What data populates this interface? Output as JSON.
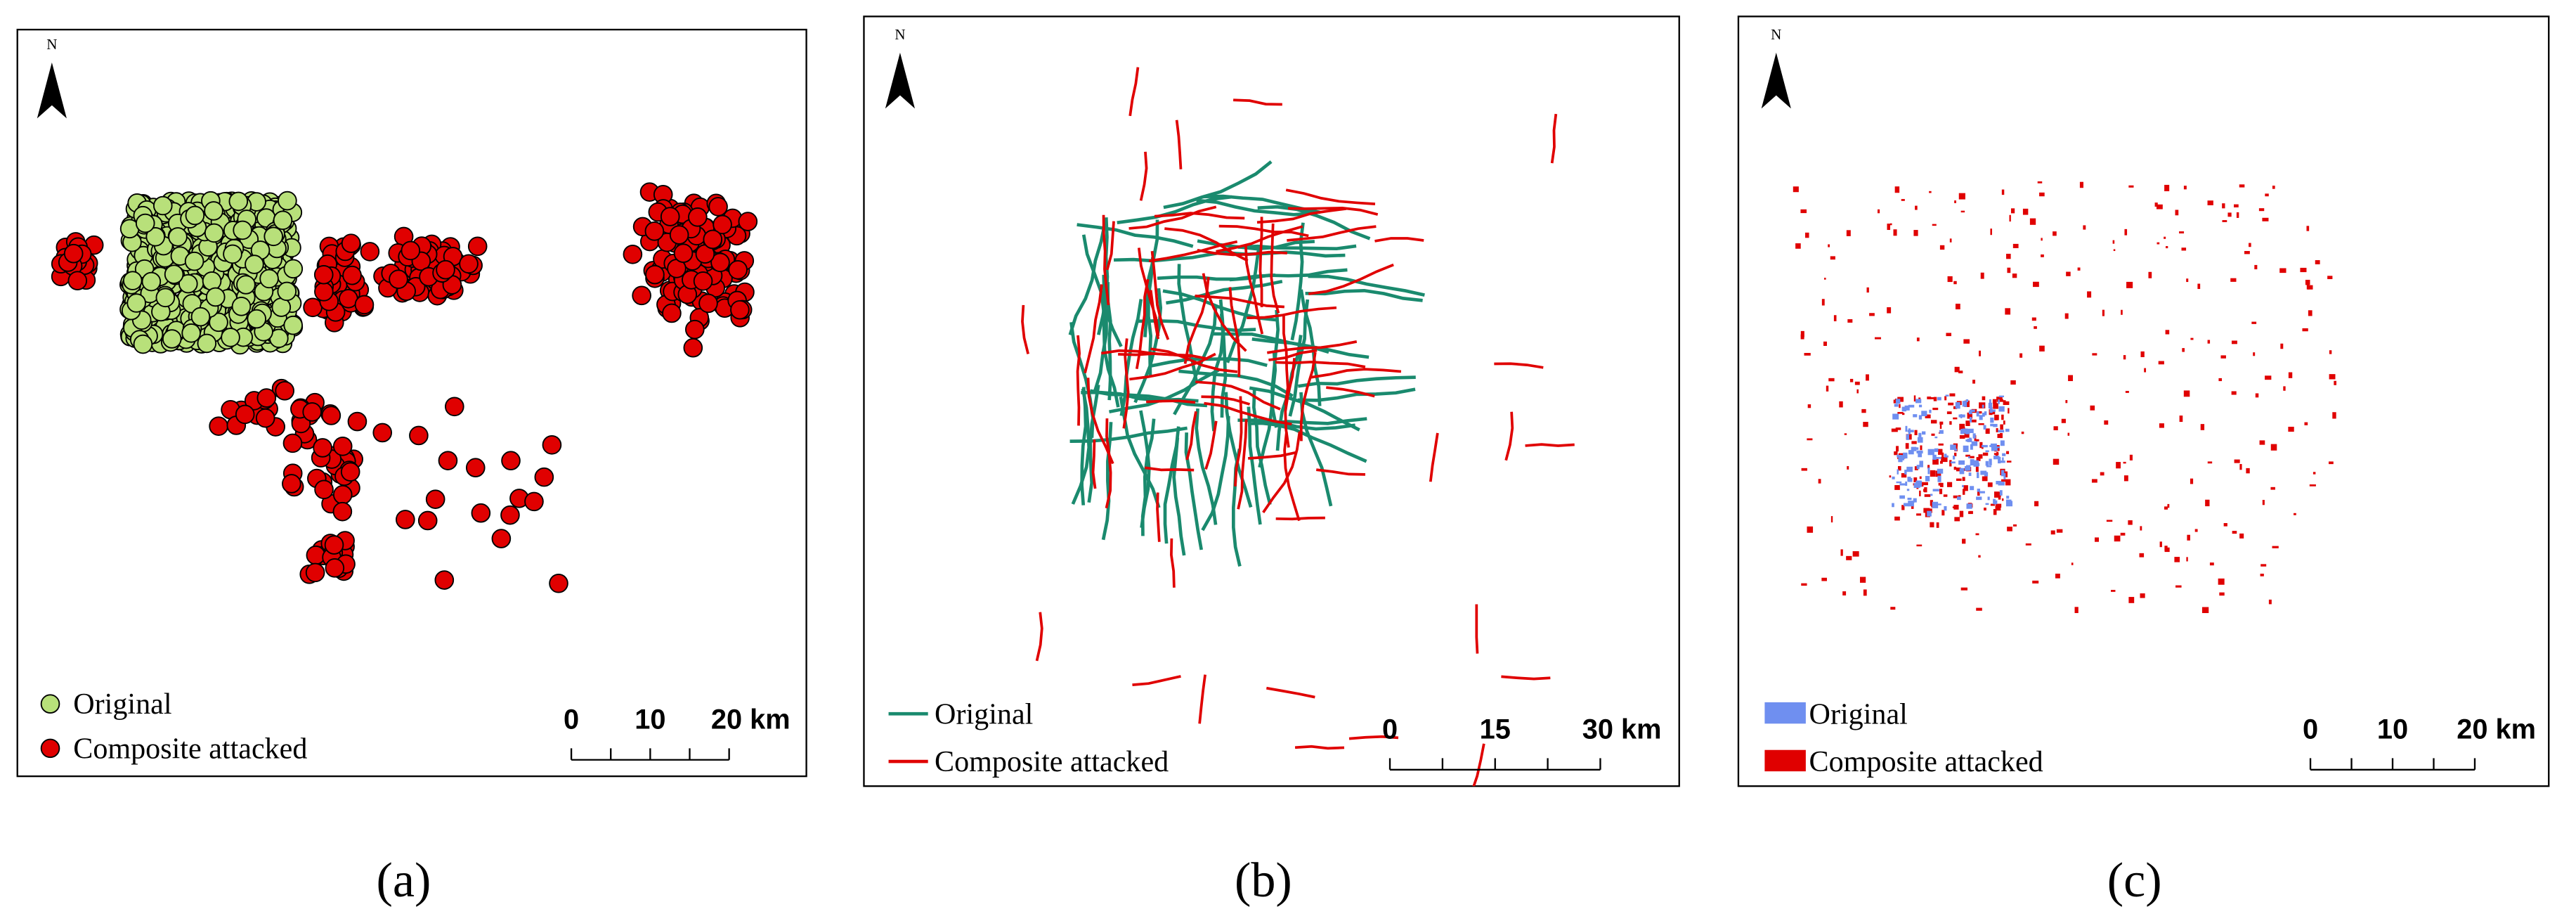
{
  "panels": [
    {
      "north": "N",
      "legend": [
        "Original",
        "Composite attacked"
      ],
      "scale_labels": [
        "0",
        "10",
        "20 km"
      ],
      "caption": "(a)"
    },
    {
      "north": "N",
      "legend": [
        "Original",
        "Composite attacked"
      ],
      "scale_labels": [
        "0",
        "15",
        "30 km"
      ],
      "caption": "(b)"
    },
    {
      "north": "N",
      "legend": [
        "Original",
        "Composite attacked"
      ],
      "scale_labels": [
        "0",
        "10",
        "20 km"
      ],
      "caption": "(c)"
    }
  ]
}
